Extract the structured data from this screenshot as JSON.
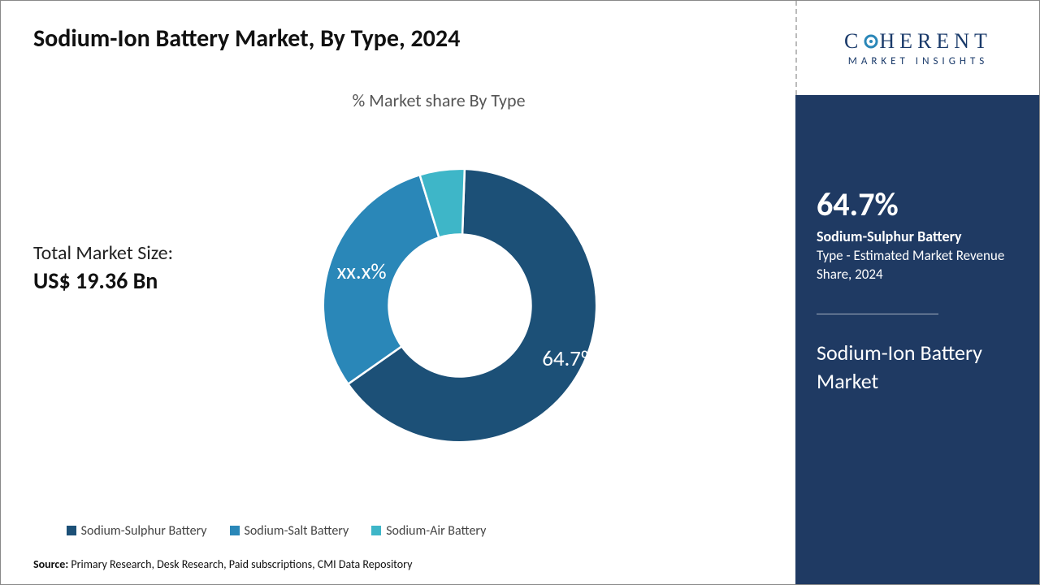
{
  "title": "Sodium-Ion Battery Market, By Type, 2024",
  "chart": {
    "type": "donut",
    "title": "% Market share By Type",
    "inner_radius_pct": 52,
    "outer_radius_pct": 100,
    "background_color": "#ffffff",
    "start_angle_deg": -88,
    "slices": [
      {
        "key": "sodium_sulphur",
        "label": "64.7%",
        "value": 64.7,
        "color": "#1c5077",
        "label_pos": "outer-right"
      },
      {
        "key": "sodium_salt",
        "label": "xx.x%",
        "value": 30.0,
        "color": "#2a87b8",
        "label_pos": "mid"
      },
      {
        "key": "sodium_air",
        "label": "",
        "value": 5.3,
        "color": "#3eb6c8"
      }
    ],
    "stroke_color": "#ffffff",
    "stroke_width": 1.5,
    "label_color": "#ffffff",
    "label_fontsize": 16
  },
  "market_size": {
    "label": "Total Market Size:",
    "value": "US$ 19.36 Bn"
  },
  "legend": {
    "items": [
      {
        "swatch": "#1c5077",
        "label": "Sodium-Sulphur Battery"
      },
      {
        "swatch": "#2a87b8",
        "label": "Sodium-Salt Battery"
      },
      {
        "swatch": "#3eb6c8",
        "label": "Sodium-Air Battery"
      }
    ]
  },
  "source": {
    "prefix": "Source:",
    "text": "Primary Research, Desk Research, Paid subscriptions, CMI Data Repository"
  },
  "logo": {
    "line1_left": "C",
    "line1_o": "O",
    "line1_right": "HERENT",
    "line2": "MARKET INSIGHTS",
    "o_color": "#2a87b8",
    "text_color": "#1a3a6a"
  },
  "side_panel": {
    "background": "#1f3a63",
    "stat_value": "64.7%",
    "stat_name": "Sodium-Sulphur Battery",
    "stat_desc": "Type - Estimated Market Revenue Share, 2024",
    "title": "Sodium-Ion Battery Market"
  }
}
